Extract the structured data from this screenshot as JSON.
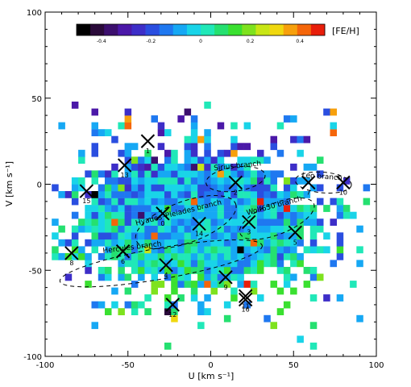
{
  "chart_data": {
    "type": "heatmap",
    "xlabel": "U [km s⁻¹]",
    "ylabel": "V [km s⁻¹]",
    "xlim": [
      -100,
      100
    ],
    "ylim": [
      -100,
      100
    ],
    "x_ticks": [
      -100,
      -50,
      0,
      50,
      100
    ],
    "y_ticks": [
      -100,
      -50,
      0,
      50,
      100
    ],
    "colorbar": {
      "label": "[FE/H]",
      "range": [
        -0.5,
        0.5
      ],
      "ticks": [
        -0.4,
        -0.2,
        0,
        0.2,
        0.4
      ],
      "tick_labels": [
        "-0.4",
        "-0.2",
        "0",
        "0.2",
        "0.4"
      ],
      "colors": [
        "#000000",
        "#2a0a3a",
        "#3c0f6e",
        "#4b18a8",
        "#3d2ec8",
        "#2a4ee0",
        "#1f78f0",
        "#16a8f4",
        "#19d4e8",
        "#20e8b8",
        "#25e070",
        "#3ae030",
        "#7ee21e",
        "#c8e615",
        "#f0d80f",
        "#f7a00c",
        "#f5660a",
        "#e81e0a"
      ]
    },
    "branches": [
      {
        "label": "Sirius branch",
        "cx": 15,
        "cy": 3,
        "rx": 18,
        "ry": 7,
        "rot": -8,
        "label_x": 2,
        "label_y": 8
      },
      {
        "label": "Leo branch",
        "cx": 68,
        "cy": 1,
        "rx": 17,
        "ry": 6,
        "rot": 5,
        "label_x": 55,
        "label_y": 4
      },
      {
        "label": "Wolf630 branch",
        "cx": 40,
        "cy": -20,
        "rx": 24,
        "ry": 9,
        "rot": -22,
        "label_x": 22,
        "label_y": -18
      },
      {
        "label": "Hyades–Pleiades branch",
        "cx": -15,
        "cy": -22,
        "rx": 32,
        "ry": 12,
        "rot": -20,
        "label_x": -45,
        "label_y": -24
      },
      {
        "label": "Hercules branch",
        "cx": -30,
        "cy": -46,
        "rx": 62,
        "ry": 9,
        "rot": -10,
        "label_x": -65,
        "label_y": -40
      }
    ],
    "markers": [
      {
        "id": "0",
        "x": -29,
        "y": -17
      },
      {
        "id": "1",
        "x": -38,
        "y": 25
      },
      {
        "id": "2",
        "x": 15,
        "y": 1
      },
      {
        "id": "3",
        "x": 23,
        "y": -22
      },
      {
        "id": "4",
        "x": -27,
        "y": -47
      },
      {
        "id": "5",
        "x": 51,
        "y": -28
      },
      {
        "id": "6",
        "x": -53,
        "y": -39
      },
      {
        "id": "7",
        "x": 59,
        "y": 1
      },
      {
        "id": "8",
        "x": -84,
        "y": -40
      },
      {
        "id": "9",
        "x": 9,
        "y": -54
      },
      {
        "id": "10",
        "x": 80,
        "y": 1
      },
      {
        "id": "11",
        "x": 21,
        "y": -65
      },
      {
        "id": "12",
        "x": -23,
        "y": -70
      },
      {
        "id": "13",
        "x": -52,
        "y": 11
      },
      {
        "id": "14",
        "x": -7,
        "y": -23
      },
      {
        "id": "15",
        "x": -75,
        "y": -4
      },
      {
        "id": "16",
        "x": 21,
        "y": -67
      }
    ]
  }
}
